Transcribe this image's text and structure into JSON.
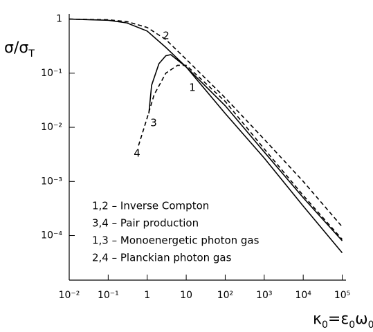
{
  "chart_data": {
    "type": "line",
    "ylabel_parts": [
      {
        "text": "σ/σ",
        "sub": "T"
      }
    ],
    "xlabel_parts": [
      {
        "text": "κ",
        "sub": "0"
      },
      {
        "text": "=ε",
        "sub": "0"
      },
      {
        "text": "ω",
        "sub": "0"
      }
    ],
    "log_x": true,
    "log_y": true,
    "xlim": [
      0.01,
      125000
    ],
    "ylim": [
      1.5e-05,
      1.25
    ],
    "xticks": [
      {
        "value": 0.01,
        "label": "10⁻²"
      },
      {
        "value": 0.1,
        "label": "10⁻¹"
      },
      1,
      10,
      {
        "value": 100,
        "label": "10²"
      },
      {
        "value": 1000,
        "label": "10³"
      },
      {
        "value": 10000,
        "label": "10⁴"
      },
      {
        "value": 100000,
        "label": "10⁵"
      }
    ],
    "yticks": [
      1,
      {
        "value": 0.1,
        "label": "10⁻¹"
      },
      {
        "value": 0.01,
        "label": "10⁻²"
      },
      {
        "value": 0.001,
        "label": "10⁻³"
      },
      {
        "value": 0.0001,
        "label": "10⁻⁴"
      }
    ],
    "series": [
      {
        "name": "1",
        "color": "#000000",
        "dashed": false,
        "x": [
          0.01,
          0.1,
          0.3,
          1,
          3,
          10,
          100,
          1000,
          10000,
          100000
        ],
        "values": [
          1,
          0.95,
          0.85,
          0.6,
          0.3,
          0.13,
          0.018,
          0.0027,
          0.00035,
          4.8e-05
        ]
      },
      {
        "name": "2",
        "color": "#000000",
        "dashed": true,
        "x": [
          0.01,
          0.1,
          0.3,
          1,
          3,
          10,
          100,
          1000,
          10000,
          100000
        ],
        "values": [
          1,
          0.97,
          0.9,
          0.7,
          0.42,
          0.18,
          0.035,
          0.006,
          0.001,
          0.000145
        ]
      },
      {
        "name": "3",
        "color": "#000000",
        "dashed": false,
        "x": [
          1.1,
          1.3,
          2,
          3,
          4,
          10,
          100,
          1000,
          10000,
          100000
        ],
        "values": [
          0.018,
          0.06,
          0.15,
          0.21,
          0.22,
          0.13,
          0.025,
          0.0035,
          0.0005,
          8e-05
        ]
      },
      {
        "name": "4",
        "color": "#000000",
        "dashed": true,
        "x": [
          0.6,
          1,
          1.5,
          3,
          6,
          10,
          100,
          1000,
          10000,
          100000
        ],
        "values": [
          0.0046,
          0.015,
          0.04,
          0.1,
          0.14,
          0.14,
          0.03,
          0.004,
          0.00055,
          8.5e-05
        ]
      }
    ],
    "legend_lines": [
      "1,2 – Inverse Compton",
      "3,4 – Pair production",
      "1,3 – Monoenergetic photon gas",
      "2,4 – Planckian  photon gas"
    ]
  }
}
